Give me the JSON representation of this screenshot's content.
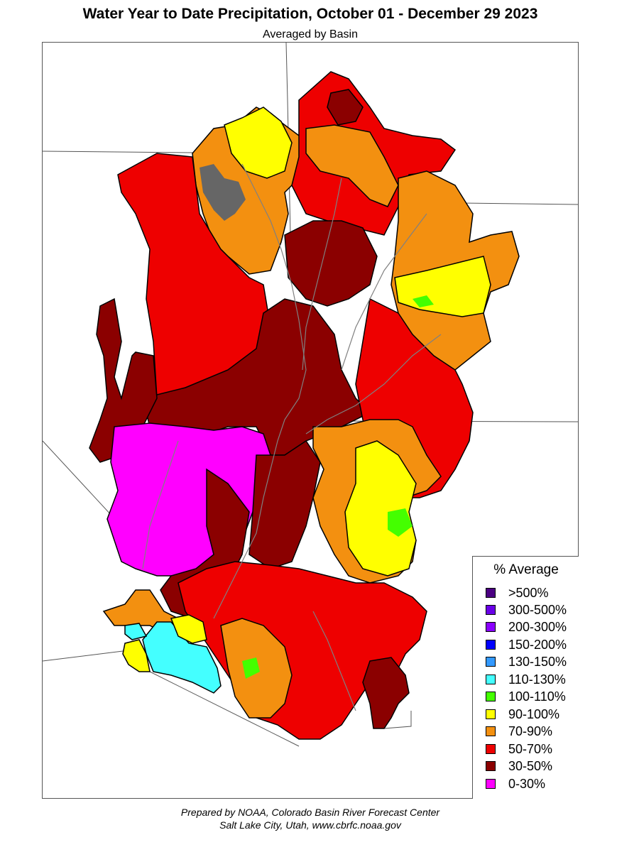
{
  "title": "Water Year to Date Precipitation, October 01  - December 29 2023",
  "subtitle": "Averaged by Basin",
  "legend": {
    "title": "% Average",
    "items": [
      {
        "label": ">500%",
        "color": "#4b0082"
      },
      {
        "label": "300-500%",
        "color": "#6a00e8"
      },
      {
        "label": "200-300%",
        "color": "#8a00ff"
      },
      {
        "label": "150-200%",
        "color": "#0000ff"
      },
      {
        "label": "130-150%",
        "color": "#3399ff"
      },
      {
        "label": "110-130%",
        "color": "#44ffff"
      },
      {
        "label": "100-110%",
        "color": "#44ff00"
      },
      {
        "label": "90-100%",
        "color": "#ffff00"
      },
      {
        "label": "70-90%",
        "color": "#f39010"
      },
      {
        "label": "50-70%",
        "color": "#ee0000"
      },
      {
        "label": "30-50%",
        "color": "#8b0000"
      },
      {
        "label": "0-30%",
        "color": "#ff00ff"
      }
    ]
  },
  "credit_line1": "Prepared by NOAA, Colorado Basin River Forecast Center",
  "credit_line2": "Salt Lake City, Utah, www.cbrfc.noaa.gov",
  "colors": {
    "no_data": "#666666",
    "border": "#000000",
    "state_line": "#555555",
    "river": "#808080"
  }
}
